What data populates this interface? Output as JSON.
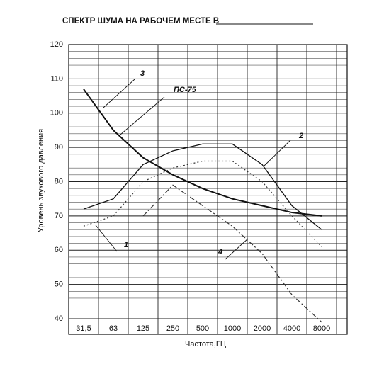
{
  "chart_data": {
    "type": "line",
    "title": "СПЕКТР ШУМА НА РАБОЧЕМ МЕСТЕ В",
    "x_label": "Частота,ГЦ",
    "y_label": "Уровень звукового давления",
    "categories": [
      "31,5",
      "63",
      "125",
      "250",
      "500",
      "1000",
      "2000",
      "4000",
      "8000"
    ],
    "ylim": [
      40,
      120
    ],
    "yticks": [
      40,
      50,
      60,
      70,
      80,
      90,
      100,
      110,
      120
    ],
    "grid": true,
    "annotation": "ПС-75",
    "series": [
      {
        "name": "3",
        "color": "#111",
        "style": "solid-thick",
        "values": [
          107,
          95,
          87,
          82,
          78,
          75,
          73,
          71,
          70
        ]
      },
      {
        "name": "2",
        "color": "#111",
        "style": "solid",
        "values": [
          72,
          75,
          85,
          89,
          91,
          91,
          85,
          73,
          66
        ]
      },
      {
        "name": "1",
        "color": "#333",
        "style": "dotted",
        "values": [
          67,
          70,
          80,
          84,
          86,
          86,
          80,
          70,
          61
        ]
      },
      {
        "name": "4",
        "color": "#333",
        "style": "dashdot",
        "values": [
          null,
          null,
          70,
          79,
          73,
          67,
          59,
          47,
          39
        ]
      }
    ]
  }
}
